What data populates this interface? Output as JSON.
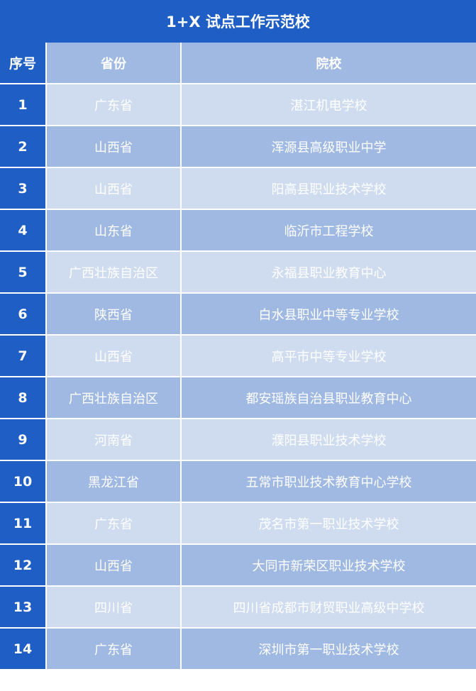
{
  "title": "1+X 试点工作示范校",
  "colors": {
    "primary": "#1f5ec4",
    "header": "#a0b9e3",
    "row_light": "#cfdcf0",
    "row_dark": "#a0b9e3"
  },
  "headers": {
    "num": "序号",
    "province": "省份",
    "school": "院校"
  },
  "rows": [
    {
      "num": "1",
      "province": "广东省",
      "school": "湛江机电学校"
    },
    {
      "num": "2",
      "province": "山西省",
      "school": "浑源县高级职业中学"
    },
    {
      "num": "3",
      "province": "山西省",
      "school": "阳高县职业技术学校"
    },
    {
      "num": "4",
      "province": "山东省",
      "school": "临沂市工程学校"
    },
    {
      "num": "5",
      "province": "广西壮族自治区",
      "school": "永福县职业教育中心"
    },
    {
      "num": "6",
      "province": "陕西省",
      "school": "白水县职业中等专业学校"
    },
    {
      "num": "7",
      "province": "山西省",
      "school": "高平市中等专业学校"
    },
    {
      "num": "8",
      "province": "广西壮族自治区",
      "school": "都安瑶族自治县职业教育中心"
    },
    {
      "num": "9",
      "province": "河南省",
      "school": "濮阳县职业技术学校"
    },
    {
      "num": "10",
      "province": "黑龙江省",
      "school": "五常市职业技术教育中心学校"
    },
    {
      "num": "11",
      "province": "广东省",
      "school": "茂名市第一职业技术学校"
    },
    {
      "num": "12",
      "province": "山西省",
      "school": "大同市新荣区职业技术学校"
    },
    {
      "num": "13",
      "province": "四川省",
      "school": "四川省成都市财贸职业高级中学校"
    },
    {
      "num": "14",
      "province": "广东省",
      "school": "深圳市第一职业技术学校"
    }
  ]
}
